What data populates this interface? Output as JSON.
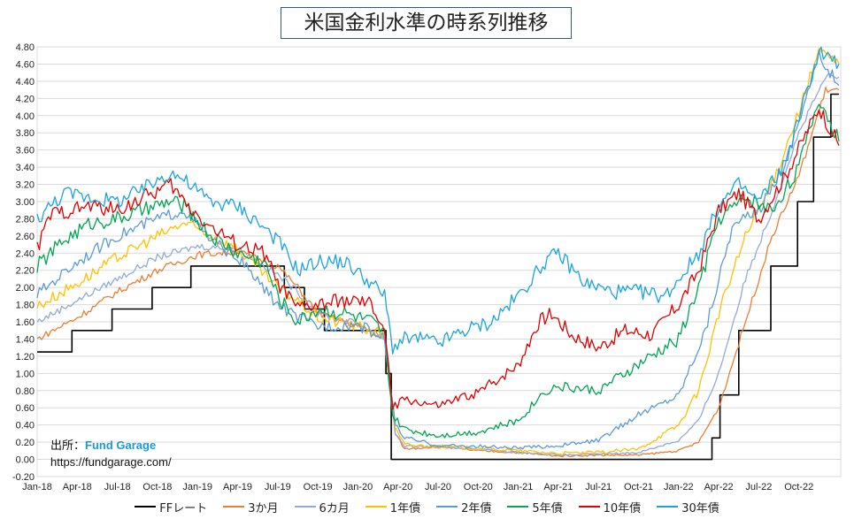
{
  "chart_data": {
    "type": "line",
    "title": "米国金利水準の時系列推移",
    "ylim": [
      -0.2,
      4.8
    ],
    "yticks": [
      "-0.20",
      "0.00",
      "0.20",
      "0.40",
      "0.60",
      "0.80",
      "1.00",
      "1.20",
      "1.40",
      "1.60",
      "1.80",
      "2.00",
      "2.20",
      "2.40",
      "2.60",
      "2.80",
      "3.00",
      "3.20",
      "3.40",
      "3.60",
      "3.80",
      "4.00",
      "4.20",
      "4.40",
      "4.60",
      "4.80"
    ],
    "xticks": [
      "Jan-18",
      "Apr-18",
      "Jul-18",
      "Oct-18",
      "Jan-19",
      "Apr-19",
      "Jul-19",
      "Oct-19",
      "Jan-20",
      "Apr-20",
      "Jul-20",
      "Oct-20",
      "Jan-21",
      "Apr-21",
      "Jul-21",
      "Oct-21",
      "Jan-22",
      "Apr-22",
      "Jul-22",
      "Oct-22"
    ],
    "grid": true,
    "legend_position": "bottom",
    "x_unit": "months since Jan-18",
    "series": [
      {
        "name": "FFレート",
        "color": "#000000",
        "step": true,
        "points": [
          [
            0,
            1.25
          ],
          [
            2.6,
            1.25
          ],
          [
            2.6,
            1.5
          ],
          [
            5.6,
            1.5
          ],
          [
            5.6,
            1.75
          ],
          [
            8.6,
            1.75
          ],
          [
            8.6,
            2.0
          ],
          [
            11.5,
            2.0
          ],
          [
            11.5,
            2.25
          ],
          [
            18.5,
            2.25
          ],
          [
            18.5,
            2.0
          ],
          [
            20.0,
            2.0
          ],
          [
            20.0,
            1.75
          ],
          [
            21.5,
            1.75
          ],
          [
            21.5,
            1.5
          ],
          [
            26.1,
            1.5
          ],
          [
            26.1,
            1.0
          ],
          [
            26.5,
            1.0
          ],
          [
            26.5,
            0.0
          ],
          [
            50.5,
            0.0
          ],
          [
            50.5,
            0.25
          ],
          [
            51.1,
            0.25
          ],
          [
            51.1,
            0.75
          ],
          [
            52.5,
            0.75
          ],
          [
            52.5,
            1.5
          ],
          [
            54.9,
            1.5
          ],
          [
            54.9,
            2.25
          ],
          [
            56.9,
            2.25
          ],
          [
            56.9,
            3.0
          ],
          [
            58.1,
            3.0
          ],
          [
            58.1,
            3.75
          ],
          [
            59.4,
            3.75
          ],
          [
            59.4,
            4.25
          ],
          [
            60,
            4.25
          ]
        ]
      },
      {
        "name": "3か月",
        "color": "#ed7d31",
        "points": [
          [
            0,
            1.4
          ],
          [
            3,
            1.65
          ],
          [
            6,
            1.95
          ],
          [
            9,
            2.2
          ],
          [
            12,
            2.38
          ],
          [
            15,
            2.42
          ],
          [
            18,
            2.25
          ],
          [
            19.5,
            2.0
          ],
          [
            21,
            1.7
          ],
          [
            24,
            1.55
          ],
          [
            26,
            1.45
          ],
          [
            26.8,
            0.3
          ],
          [
            27.5,
            0.12
          ],
          [
            30,
            0.15
          ],
          [
            33,
            0.1
          ],
          [
            36,
            0.08
          ],
          [
            39,
            0.04
          ],
          [
            42,
            0.05
          ],
          [
            45,
            0.05
          ],
          [
            48,
            0.1
          ],
          [
            49.5,
            0.2
          ],
          [
            51,
            0.6
          ],
          [
            53,
            1.6
          ],
          [
            55,
            2.6
          ],
          [
            57,
            3.3
          ],
          [
            59,
            4.3
          ],
          [
            60,
            4.3
          ]
        ]
      },
      {
        "name": "6カ月",
        "color": "#8faadc",
        "points": [
          [
            0,
            1.6
          ],
          [
            3,
            1.85
          ],
          [
            6,
            2.1
          ],
          [
            9,
            2.35
          ],
          [
            12,
            2.48
          ],
          [
            15,
            2.45
          ],
          [
            18,
            2.15
          ],
          [
            19.5,
            1.95
          ],
          [
            21,
            1.7
          ],
          [
            24,
            1.58
          ],
          [
            26,
            1.4
          ],
          [
            26.8,
            0.3
          ],
          [
            27.5,
            0.15
          ],
          [
            30,
            0.15
          ],
          [
            33,
            0.12
          ],
          [
            36,
            0.08
          ],
          [
            39,
            0.05
          ],
          [
            42,
            0.06
          ],
          [
            45,
            0.08
          ],
          [
            48,
            0.22
          ],
          [
            49.5,
            0.45
          ],
          [
            51,
            1.0
          ],
          [
            53,
            2.1
          ],
          [
            55,
            2.9
          ],
          [
            57,
            3.8
          ],
          [
            59,
            4.45
          ],
          [
            60,
            4.45
          ]
        ]
      },
      {
        "name": "1年債",
        "color": "#ffc000",
        "points": [
          [
            0,
            1.78
          ],
          [
            3,
            2.05
          ],
          [
            6,
            2.35
          ],
          [
            9,
            2.6
          ],
          [
            11,
            2.75
          ],
          [
            13,
            2.6
          ],
          [
            15,
            2.45
          ],
          [
            18,
            2.0
          ],
          [
            19.5,
            1.85
          ],
          [
            21,
            1.65
          ],
          [
            24,
            1.55
          ],
          [
            26,
            1.45
          ],
          [
            26.8,
            0.35
          ],
          [
            27.5,
            0.17
          ],
          [
            30,
            0.15
          ],
          [
            33,
            0.13
          ],
          [
            36,
            0.1
          ],
          [
            39,
            0.07
          ],
          [
            42,
            0.08
          ],
          [
            45,
            0.12
          ],
          [
            48,
            0.4
          ],
          [
            49.5,
            0.8
          ],
          [
            51,
            1.7
          ],
          [
            53,
            2.6
          ],
          [
            55,
            3.2
          ],
          [
            57,
            4.05
          ],
          [
            58.5,
            4.75
          ],
          [
            60,
            4.6
          ]
        ]
      },
      {
        "name": "2年債",
        "color": "#5b9bd5",
        "points": [
          [
            0,
            1.92
          ],
          [
            3,
            2.3
          ],
          [
            6,
            2.6
          ],
          [
            9,
            2.8
          ],
          [
            11,
            2.9
          ],
          [
            13,
            2.55
          ],
          [
            15,
            2.35
          ],
          [
            18,
            1.8
          ],
          [
            19.5,
            1.65
          ],
          [
            21,
            1.55
          ],
          [
            24,
            1.57
          ],
          [
            26,
            1.4
          ],
          [
            26.8,
            0.4
          ],
          [
            27.5,
            0.25
          ],
          [
            30,
            0.16
          ],
          [
            33,
            0.15
          ],
          [
            36,
            0.13
          ],
          [
            39,
            0.16
          ],
          [
            42,
            0.22
          ],
          [
            45,
            0.52
          ],
          [
            48,
            0.75
          ],
          [
            50,
            1.5
          ],
          [
            52,
            2.7
          ],
          [
            54,
            2.9
          ],
          [
            56,
            3.45
          ],
          [
            58.5,
            4.7
          ],
          [
            60,
            4.35
          ]
        ]
      },
      {
        "name": "5年債",
        "color": "#00a651",
        "points": [
          [
            0,
            2.25
          ],
          [
            2,
            2.55
          ],
          [
            4,
            2.75
          ],
          [
            6,
            2.8
          ],
          [
            8,
            2.9
          ],
          [
            10,
            3.0
          ],
          [
            11,
            2.95
          ],
          [
            13,
            2.6
          ],
          [
            15,
            2.4
          ],
          [
            17,
            2.3
          ],
          [
            18,
            1.9
          ],
          [
            19.5,
            1.6
          ],
          [
            21,
            1.75
          ],
          [
            23,
            1.7
          ],
          [
            25,
            1.6
          ],
          [
            26,
            1.45
          ],
          [
            26.6,
            0.5
          ],
          [
            27.5,
            0.35
          ],
          [
            30,
            0.28
          ],
          [
            33,
            0.32
          ],
          [
            36,
            0.45
          ],
          [
            38,
            0.8
          ],
          [
            39,
            0.85
          ],
          [
            42,
            0.8
          ],
          [
            45,
            1.1
          ],
          [
            48,
            1.4
          ],
          [
            49.5,
            2.0
          ],
          [
            51,
            2.8
          ],
          [
            53,
            3.05
          ],
          [
            55,
            2.9
          ],
          [
            57,
            3.4
          ],
          [
            58.5,
            4.2
          ],
          [
            60,
            3.7
          ]
        ]
      },
      {
        "name": "10年債",
        "color": "#e00000",
        "points": [
          [
            0,
            2.45
          ],
          [
            1,
            2.85
          ],
          [
            4,
            2.95
          ],
          [
            6,
            2.9
          ],
          [
            8,
            3.05
          ],
          [
            10,
            3.2
          ],
          [
            11,
            3.0
          ],
          [
            13,
            2.7
          ],
          [
            15,
            2.5
          ],
          [
            17,
            2.4
          ],
          [
            18,
            2.05
          ],
          [
            19.5,
            1.75
          ],
          [
            21,
            1.8
          ],
          [
            23,
            1.85
          ],
          [
            25,
            1.8
          ],
          [
            26,
            1.5
          ],
          [
            26.6,
            0.6
          ],
          [
            27.5,
            0.7
          ],
          [
            30,
            0.62
          ],
          [
            33,
            0.78
          ],
          [
            36,
            1.1
          ],
          [
            37.5,
            1.6
          ],
          [
            38.5,
            1.7
          ],
          [
            40,
            1.45
          ],
          [
            42,
            1.3
          ],
          [
            44,
            1.5
          ],
          [
            46,
            1.45
          ],
          [
            48,
            1.8
          ],
          [
            49.5,
            2.2
          ],
          [
            51,
            2.9
          ],
          [
            52.5,
            3.1
          ],
          [
            54,
            2.8
          ],
          [
            56,
            3.3
          ],
          [
            58.5,
            4.1
          ],
          [
            60,
            3.65
          ]
        ]
      },
      {
        "name": "30年債",
        "color": "#1aa3e0",
        "points": [
          [
            0,
            2.8
          ],
          [
            2,
            3.1
          ],
          [
            4,
            3.05
          ],
          [
            6,
            3.0
          ],
          [
            8,
            3.15
          ],
          [
            10,
            3.35
          ],
          [
            11,
            3.25
          ],
          [
            13,
            3.0
          ],
          [
            15,
            2.95
          ],
          [
            17,
            2.7
          ],
          [
            18,
            2.55
          ],
          [
            19.5,
            2.2
          ],
          [
            21,
            2.3
          ],
          [
            23,
            2.3
          ],
          [
            25,
            2.05
          ],
          [
            26,
            1.9
          ],
          [
            26.6,
            1.3
          ],
          [
            27.5,
            1.4
          ],
          [
            29,
            1.4
          ],
          [
            30,
            1.35
          ],
          [
            32,
            1.5
          ],
          [
            34,
            1.6
          ],
          [
            36,
            1.9
          ],
          [
            38,
            2.3
          ],
          [
            39,
            2.4
          ],
          [
            41,
            2.05
          ],
          [
            43,
            1.95
          ],
          [
            45,
            1.95
          ],
          [
            47,
            1.9
          ],
          [
            48,
            2.1
          ],
          [
            49.5,
            2.4
          ],
          [
            51,
            2.95
          ],
          [
            52.5,
            3.2
          ],
          [
            54,
            3.0
          ],
          [
            56,
            3.45
          ],
          [
            58.5,
            4.75
          ],
          [
            60,
            4.6
          ]
        ]
      }
    ]
  },
  "source": {
    "label": "出所：",
    "name": "Fund Garage",
    "url": "https://fundgarage.com/"
  }
}
